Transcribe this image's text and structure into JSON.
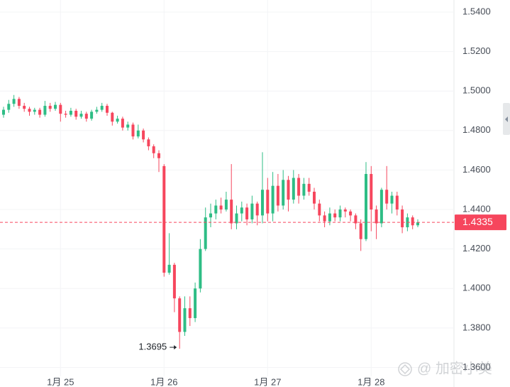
{
  "chart_data": {
    "type": "candlestick",
    "categories": [
      null,
      null,
      null,
      null,
      null,
      null,
      null,
      null,
      null,
      null,
      null,
      "1月 25",
      null,
      null,
      null,
      null,
      null,
      null,
      null,
      null,
      null,
      null,
      null,
      null,
      null,
      null,
      null,
      null,
      null,
      null,
      null,
      "1月 26",
      null,
      null,
      null,
      null,
      null,
      null,
      null,
      null,
      null,
      null,
      null,
      null,
      null,
      null,
      null,
      null,
      null,
      null,
      null,
      "1月 27",
      null,
      null,
      null,
      null,
      null,
      null,
      null,
      null,
      null,
      null,
      null,
      null,
      null,
      null,
      null,
      null,
      null,
      null,
      null,
      "1月 28",
      null,
      null,
      null,
      null,
      null,
      null,
      null,
      null,
      null
    ],
    "open": [
      1.488,
      1.4905,
      1.4935,
      1.496,
      1.4925,
      1.491,
      1.4895,
      1.4905,
      1.488,
      1.4925,
      1.491,
      1.493,
      1.4885,
      1.488,
      1.49,
      1.487,
      1.4885,
      1.486,
      1.4895,
      1.4905,
      1.4925,
      1.489,
      1.4845,
      1.486,
      1.4815,
      1.483,
      1.477,
      1.48,
      1.4755,
      1.472,
      1.4685,
      1.462,
      1.408,
      1.412,
      1.395,
      1.378,
      1.39,
      1.385,
      1.4,
      1.42,
      1.436,
      1.438,
      1.442,
      1.44,
      1.445,
      1.433,
      1.438,
      1.441,
      1.435,
      1.443,
      1.437,
      1.45,
      1.438,
      1.452,
      1.442,
      1.455,
      1.445,
      1.456,
      1.447,
      1.453,
      1.449,
      1.443,
      1.437,
      1.434,
      1.438,
      1.436,
      1.44,
      1.439,
      1.437,
      1.433,
      1.425,
      1.458,
      1.44,
      1.433,
      1.45,
      1.443,
      1.447,
      1.44,
      1.431,
      1.436,
      1.432
    ],
    "high": [
      1.492,
      1.4955,
      1.498,
      1.497,
      1.494,
      1.492,
      1.4915,
      1.4915,
      1.495,
      1.494,
      1.4945,
      1.494,
      1.49,
      1.4915,
      1.491,
      1.49,
      1.4895,
      1.4905,
      1.492,
      1.494,
      1.4935,
      1.4895,
      1.4875,
      1.487,
      1.4845,
      1.484,
      1.483,
      1.481,
      1.4765,
      1.473,
      1.47,
      1.463,
      1.428,
      1.413,
      1.396,
      1.396,
      1.396,
      1.403,
      1.425,
      1.441,
      1.443,
      1.445,
      1.446,
      1.449,
      1.463,
      1.442,
      1.444,
      1.443,
      1.447,
      1.444,
      1.469,
      1.456,
      1.459,
      1.458,
      1.46,
      1.457,
      1.46,
      1.458,
      1.456,
      1.456,
      1.451,
      1.445,
      1.439,
      1.441,
      1.44,
      1.442,
      1.441,
      1.44,
      1.438,
      1.435,
      1.464,
      1.462,
      1.442,
      1.451,
      1.462,
      1.449,
      1.449,
      1.442,
      1.438,
      1.437,
      1.435
    ],
    "low": [
      1.4865,
      1.489,
      1.492,
      1.491,
      1.4895,
      1.4875,
      1.488,
      1.4865,
      1.487,
      1.4895,
      1.49,
      1.4845,
      1.4865,
      1.487,
      1.4855,
      1.486,
      1.4845,
      1.485,
      1.4885,
      1.4895,
      1.4875,
      1.4825,
      1.4835,
      1.48,
      1.48,
      1.4755,
      1.476,
      1.474,
      1.47,
      1.466,
      1.459,
      1.406,
      1.407,
      1.388,
      1.3695,
      1.376,
      1.381,
      1.383,
      1.398,
      1.419,
      1.431,
      1.435,
      1.438,
      1.439,
      1.43,
      1.43,
      1.434,
      1.432,
      1.433,
      1.432,
      1.433,
      1.434,
      1.434,
      1.439,
      1.44,
      1.439,
      1.443,
      1.443,
      1.445,
      1.447,
      1.44,
      1.434,
      1.431,
      1.432,
      1.434,
      1.434,
      1.436,
      1.434,
      1.43,
      1.419,
      1.424,
      1.429,
      1.425,
      1.431,
      1.44,
      1.438,
      1.437,
      1.428,
      1.429,
      1.43,
      1.431
    ],
    "close": [
      1.4905,
      1.4935,
      1.496,
      1.4925,
      1.491,
      1.4895,
      1.4905,
      1.488,
      1.4925,
      1.491,
      1.493,
      1.4885,
      1.488,
      1.49,
      1.487,
      1.4885,
      1.486,
      1.4895,
      1.4905,
      1.4925,
      1.489,
      1.4845,
      1.486,
      1.4815,
      1.483,
      1.477,
      1.48,
      1.4755,
      1.472,
      1.4685,
      1.466,
      1.408,
      1.412,
      1.395,
      1.378,
      1.39,
      1.385,
      1.4,
      1.42,
      1.436,
      1.438,
      1.442,
      1.44,
      1.445,
      1.433,
      1.438,
      1.441,
      1.435,
      1.443,
      1.437,
      1.45,
      1.438,
      1.452,
      1.442,
      1.455,
      1.445,
      1.456,
      1.447,
      1.453,
      1.449,
      1.443,
      1.437,
      1.434,
      1.438,
      1.436,
      1.44,
      1.439,
      1.437,
      1.433,
      1.425,
      1.458,
      1.44,
      1.433,
      1.45,
      1.443,
      1.447,
      1.44,
      1.431,
      1.436,
      1.432,
      1.4335
    ],
    "up_color": "#2ebd85",
    "down_color": "#f6465d",
    "ylim": [
      1.3555,
      1.5461
    ],
    "yticks": [
      {
        "value": 1.36,
        "label": "1.3600"
      },
      {
        "value": 1.38,
        "label": "1.3800"
      },
      {
        "value": 1.4,
        "label": "1.4000"
      },
      {
        "value": 1.42,
        "label": "1.4200"
      },
      {
        "value": 1.44,
        "label": "1.4400"
      },
      {
        "value": 1.46,
        "label": "1.4600"
      },
      {
        "value": 1.48,
        "label": "1.4800"
      },
      {
        "value": 1.5,
        "label": "1.5000"
      },
      {
        "value": 1.52,
        "label": "1.5200"
      },
      {
        "value": 1.54,
        "label": "1.5400"
      }
    ],
    "grid": true,
    "watermark": "@ 加密小美"
  }
}
